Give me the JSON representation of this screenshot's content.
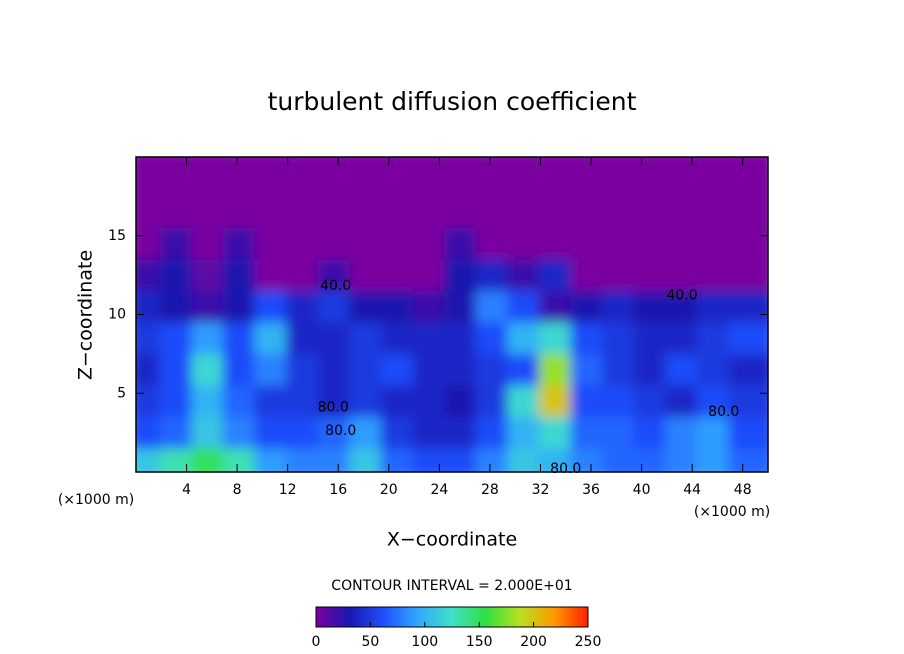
{
  "chart_data": {
    "type": "heatmap",
    "title": "turbulent diffusion coefficient",
    "x_label": "X−coordinate",
    "y_label": "Z−coordinate",
    "x_unit": "(×1000 m)",
    "y_unit": "(×1000 m)",
    "contour_interval_text": "CONTOUR INTERVAL = 2.000E+01",
    "xlim": [
      0,
      50
    ],
    "ylim": [
      0,
      20
    ],
    "xticks": [
      4,
      8,
      12,
      16,
      20,
      24,
      28,
      32,
      36,
      40,
      44,
      48
    ],
    "yticks": [
      5,
      10,
      15
    ],
    "x": [
      1.25,
      3.75,
      6.25,
      8.75,
      11.25,
      13.75,
      16.25,
      18.75,
      21.25,
      23.75,
      26.25,
      28.75,
      31.25,
      33.75,
      36.25,
      38.75,
      41.25,
      43.75,
      46.25,
      48.75
    ],
    "y": [
      1,
      3,
      5,
      7,
      9,
      11,
      13,
      15,
      17,
      19
    ],
    "z": [
      [
        110,
        130,
        150,
        130,
        90,
        80,
        80,
        110,
        70,
        60,
        60,
        80,
        110,
        100,
        80,
        70,
        70,
        80,
        90,
        70
      ],
      [
        60,
        70,
        110,
        80,
        60,
        60,
        70,
        90,
        50,
        40,
        40,
        60,
        100,
        120,
        70,
        70,
        60,
        80,
        90,
        60
      ],
      [
        50,
        60,
        100,
        70,
        50,
        50,
        40,
        50,
        40,
        40,
        30,
        50,
        120,
        200,
        60,
        60,
        50,
        40,
        60,
        50
      ],
      [
        40,
        60,
        120,
        60,
        80,
        50,
        40,
        50,
        60,
        40,
        40,
        50,
        60,
        180,
        70,
        50,
        40,
        60,
        50,
        40
      ],
      [
        50,
        60,
        90,
        60,
        100,
        40,
        40,
        50,
        40,
        40,
        40,
        60,
        100,
        120,
        60,
        50,
        40,
        40,
        50,
        60
      ],
      [
        40,
        30,
        20,
        30,
        60,
        40,
        50,
        30,
        30,
        20,
        30,
        80,
        60,
        20,
        30,
        40,
        30,
        30,
        40,
        40
      ],
      [
        20,
        30,
        10,
        30,
        0,
        0,
        20,
        0,
        0,
        0,
        30,
        40,
        20,
        40,
        0,
        0,
        0,
        0,
        0,
        0
      ],
      [
        0,
        20,
        0,
        20,
        0,
        0,
        0,
        0,
        0,
        0,
        20,
        0,
        0,
        0,
        0,
        0,
        0,
        0,
        0,
        0
      ],
      [
        0,
        0,
        0,
        0,
        0,
        0,
        0,
        0,
        0,
        0,
        0,
        0,
        0,
        0,
        0,
        0,
        0,
        0,
        0,
        0
      ],
      [
        0,
        0,
        0,
        0,
        0,
        0,
        0,
        0,
        0,
        0,
        0,
        0,
        0,
        0,
        0,
        0,
        0,
        0,
        0,
        0
      ]
    ],
    "zlim": [
      0,
      250
    ],
    "zticks": [
      0,
      50,
      100,
      150,
      200,
      250
    ],
    "colorscale": [
      "#7a00a0",
      "#1818b0",
      "#2050ff",
      "#30a8ff",
      "#40e0c8",
      "#30e040",
      "#b8e020",
      "#ff9a00",
      "#ff2000"
    ],
    "contour_labels": [
      {
        "value": 40,
        "label": "40.0",
        "x": 15.8,
        "y": 11.8
      },
      {
        "value": 40,
        "label": "40.0",
        "x": 43.2,
        "y": 11.2
      },
      {
        "value": 80,
        "label": "80.0",
        "x": 15.6,
        "y": 4.1
      },
      {
        "value": 80,
        "label": "80.0",
        "x": 16.2,
        "y": 2.6
      },
      {
        "value": 80,
        "label": "80.0",
        "x": 46.5,
        "y": 3.8
      },
      {
        "value": 80,
        "label": "80.0",
        "x": 34.0,
        "y": 0.2
      }
    ]
  }
}
